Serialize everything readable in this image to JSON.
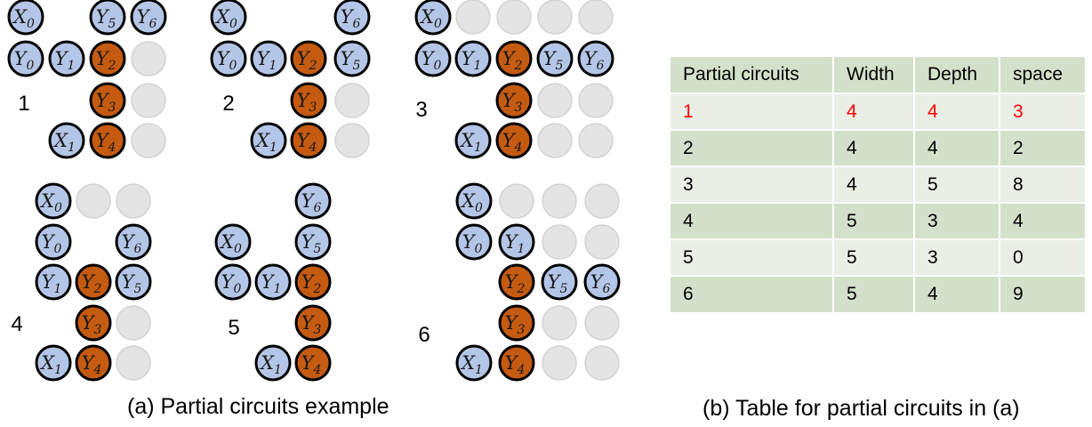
{
  "colors": {
    "blue_fill": "#b4c6e7",
    "orange_fill": "#c55a11",
    "empty_fill": "#e4e4e4",
    "stroke": "#000000",
    "highlight_text": "#ff0000",
    "row_light": "#e9efe5",
    "row_dark": "#d4e1ca"
  },
  "panels": [
    {
      "number": "1",
      "nodes": [
        {
          "type": "blue",
          "var": "X",
          "sub": "0"
        },
        {
          "type": "blue",
          "var": "Y",
          "sub": "5"
        },
        {
          "type": "blue",
          "var": "Y",
          "sub": "6"
        },
        {
          "type": "blue",
          "var": "Y",
          "sub": "0"
        },
        {
          "type": "blue",
          "var": "Y",
          "sub": "1"
        },
        {
          "type": "orange",
          "var": "Y",
          "sub": "2"
        },
        {
          "type": "empty"
        },
        {
          "type": "orange",
          "var": "Y",
          "sub": "3"
        },
        {
          "type": "empty"
        },
        {
          "type": "blue",
          "var": "X",
          "sub": "1"
        },
        {
          "type": "orange",
          "var": "Y",
          "sub": "4"
        },
        {
          "type": "empty"
        }
      ]
    },
    {
      "number": "2",
      "nodes": [
        {
          "type": "blue",
          "var": "X",
          "sub": "0"
        },
        {
          "type": "blue",
          "var": "Y",
          "sub": "6"
        },
        {
          "type": "blue",
          "var": "Y",
          "sub": "0"
        },
        {
          "type": "blue",
          "var": "Y",
          "sub": "1"
        },
        {
          "type": "orange",
          "var": "Y",
          "sub": "2"
        },
        {
          "type": "blue",
          "var": "Y",
          "sub": "5"
        },
        {
          "type": "orange",
          "var": "Y",
          "sub": "3"
        },
        {
          "type": "empty"
        },
        {
          "type": "blue",
          "var": "X",
          "sub": "1"
        },
        {
          "type": "orange",
          "var": "Y",
          "sub": "4"
        },
        {
          "type": "empty"
        }
      ]
    },
    {
      "number": "3",
      "nodes": [
        {
          "type": "blue",
          "var": "X",
          "sub": "0"
        },
        {
          "type": "empty"
        },
        {
          "type": "empty"
        },
        {
          "type": "empty"
        },
        {
          "type": "empty"
        },
        {
          "type": "blue",
          "var": "Y",
          "sub": "0"
        },
        {
          "type": "blue",
          "var": "Y",
          "sub": "1"
        },
        {
          "type": "orange",
          "var": "Y",
          "sub": "2"
        },
        {
          "type": "blue",
          "var": "Y",
          "sub": "5"
        },
        {
          "type": "blue",
          "var": "Y",
          "sub": "6"
        },
        {
          "type": "orange",
          "var": "Y",
          "sub": "3"
        },
        {
          "type": "empty"
        },
        {
          "type": "empty"
        },
        {
          "type": "blue",
          "var": "X",
          "sub": "1"
        },
        {
          "type": "orange",
          "var": "Y",
          "sub": "4"
        },
        {
          "type": "empty"
        },
        {
          "type": "empty"
        }
      ]
    },
    {
      "number": "4",
      "nodes": [
        {
          "type": "blue",
          "var": "X",
          "sub": "0"
        },
        {
          "type": "empty"
        },
        {
          "type": "empty"
        },
        {
          "type": "blue",
          "var": "Y",
          "sub": "0"
        },
        {
          "type": "blue",
          "var": "Y",
          "sub": "6"
        },
        {
          "type": "blue",
          "var": "Y",
          "sub": "1"
        },
        {
          "type": "orange",
          "var": "Y",
          "sub": "2"
        },
        {
          "type": "blue",
          "var": "Y",
          "sub": "5"
        },
        {
          "type": "orange",
          "var": "Y",
          "sub": "3"
        },
        {
          "type": "empty"
        },
        {
          "type": "blue",
          "var": "X",
          "sub": "1"
        },
        {
          "type": "orange",
          "var": "Y",
          "sub": "4"
        },
        {
          "type": "empty"
        }
      ]
    },
    {
      "number": "5",
      "nodes": [
        {
          "type": "blue",
          "var": "Y",
          "sub": "6"
        },
        {
          "type": "blue",
          "var": "X",
          "sub": "0"
        },
        {
          "type": "blue",
          "var": "Y",
          "sub": "5"
        },
        {
          "type": "blue",
          "var": "Y",
          "sub": "0"
        },
        {
          "type": "blue",
          "var": "Y",
          "sub": "1"
        },
        {
          "type": "orange",
          "var": "Y",
          "sub": "2"
        },
        {
          "type": "orange",
          "var": "Y",
          "sub": "3"
        },
        {
          "type": "blue",
          "var": "X",
          "sub": "1"
        },
        {
          "type": "orange",
          "var": "Y",
          "sub": "4"
        }
      ]
    },
    {
      "number": "6",
      "nodes": [
        {
          "type": "blue",
          "var": "X",
          "sub": "0"
        },
        {
          "type": "empty"
        },
        {
          "type": "empty"
        },
        {
          "type": "empty"
        },
        {
          "type": "blue",
          "var": "Y",
          "sub": "0"
        },
        {
          "type": "blue",
          "var": "Y",
          "sub": "1"
        },
        {
          "type": "empty"
        },
        {
          "type": "empty"
        },
        {
          "type": "orange",
          "var": "Y",
          "sub": "2"
        },
        {
          "type": "blue",
          "var": "Y",
          "sub": "5"
        },
        {
          "type": "blue",
          "var": "Y",
          "sub": "6"
        },
        {
          "type": "orange",
          "var": "Y",
          "sub": "3"
        },
        {
          "type": "empty"
        },
        {
          "type": "empty"
        },
        {
          "type": "blue",
          "var": "X",
          "sub": "1"
        },
        {
          "type": "orange",
          "var": "Y",
          "sub": "4"
        },
        {
          "type": "empty"
        },
        {
          "type": "empty"
        }
      ]
    }
  ],
  "caption_a": "(a) Partial circuits example",
  "caption_b": "(b) Table for partial circuits in (a)",
  "table": {
    "headers": [
      "Partial circuits",
      "Width",
      "Depth",
      "space"
    ],
    "rows": [
      [
        "1",
        "4",
        "4",
        "3"
      ],
      [
        "2",
        "4",
        "4",
        "2"
      ],
      [
        "3",
        "4",
        "5",
        "8"
      ],
      [
        "4",
        "5",
        "3",
        "4"
      ],
      [
        "5",
        "5",
        "3",
        "0"
      ],
      [
        "6",
        "5",
        "4",
        "9"
      ]
    ],
    "highlighted_row": 0
  }
}
